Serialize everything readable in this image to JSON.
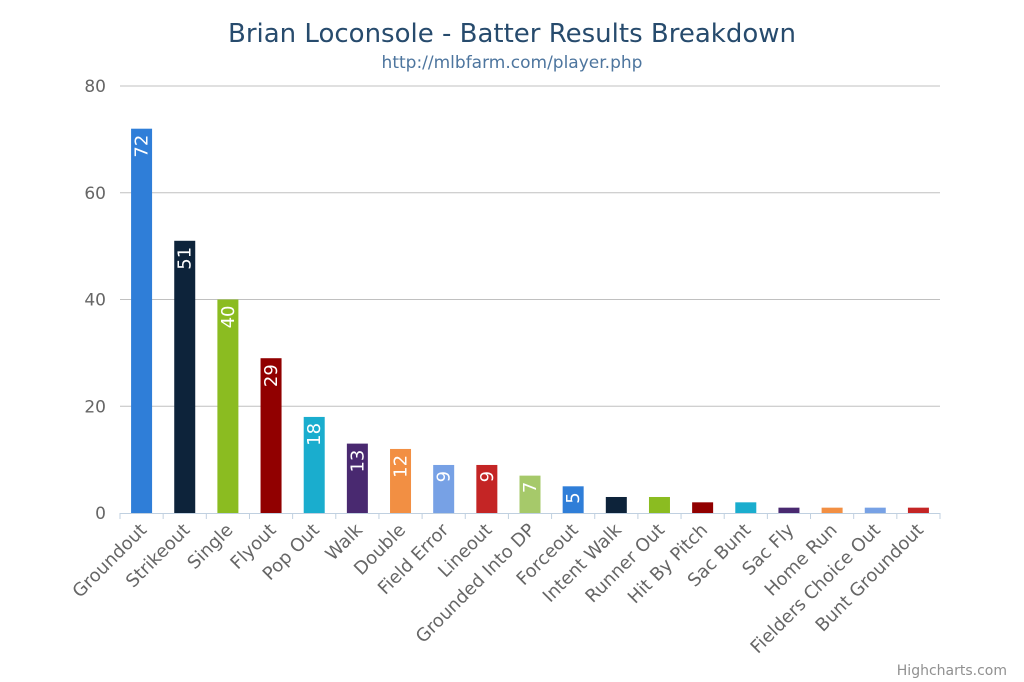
{
  "chart_data": {
    "type": "bar",
    "title": "Brian Loconsole - Batter Results Breakdown",
    "subtitle": "http://mlbfarm.com/player.php",
    "categories": [
      "Groundout",
      "Strikeout",
      "Single",
      "Flyout",
      "Pop Out",
      "Walk",
      "Double",
      "Field Error",
      "Lineout",
      "Grounded Into DP",
      "Forceout",
      "Intent Walk",
      "Runner Out",
      "Hit By Pitch",
      "Sac Bunt",
      "Sac Fly",
      "Home Run",
      "Fielders Choice Out",
      "Bunt Groundout"
    ],
    "values": [
      72,
      51,
      40,
      29,
      18,
      13,
      12,
      9,
      9,
      7,
      5,
      3,
      3,
      2,
      2,
      1,
      1,
      1,
      1
    ],
    "data_labels": [
      "72",
      "51",
      "40",
      "29",
      "18",
      "13",
      "12",
      "9",
      "9",
      "7",
      "5",
      "",
      "",
      "",
      "",
      "",
      "",
      "",
      ""
    ],
    "colors": [
      "#2f7ed8",
      "#0d233a",
      "#8bbc21",
      "#910000",
      "#1aadce",
      "#492970",
      "#f28f43",
      "#77a1e5",
      "#c42525",
      "#a6c96a",
      "#2f7ed8",
      "#0d233a",
      "#8bbc21",
      "#910000",
      "#1aadce",
      "#492970",
      "#f28f43",
      "#77a1e5",
      "#c42525"
    ],
    "ylim": [
      0,
      80
    ],
    "yticks": [
      0,
      20,
      40,
      60,
      80
    ],
    "grid": true,
    "legend": "none",
    "credits": "Highcharts.com"
  }
}
